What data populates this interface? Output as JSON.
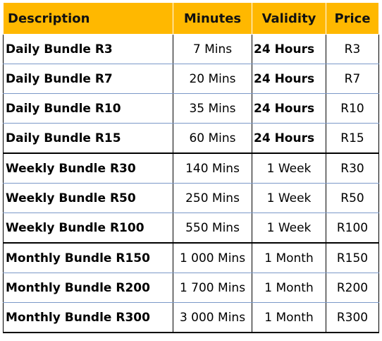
{
  "table": {
    "headers": {
      "description": "Description",
      "minutes": "Minutes",
      "validity": "Validity",
      "price": "Price"
    },
    "rows": [
      {
        "description": "Daily Bundle R3",
        "minutes": "7 Mins",
        "validity": "24 Hours",
        "price": "R3"
      },
      {
        "description": "Daily Bundle R7",
        "minutes": "20 Mins",
        "validity": "24 Hours",
        "price": "R7"
      },
      {
        "description": "Daily Bundle R10",
        "minutes": "35 Mins",
        "validity": "24 Hours",
        "price": "R10"
      },
      {
        "description": "Daily Bundle R15",
        "minutes": "60 Mins",
        "validity": "24 Hours",
        "price": "R15"
      },
      {
        "description": "Weekly Bundle R30",
        "minutes": "140 Mins",
        "validity": "1 Week",
        "price": "R30"
      },
      {
        "description": "Weekly Bundle R50",
        "minutes": "250 Mins",
        "validity": "1 Week",
        "price": "R50"
      },
      {
        "description": "Weekly Bundle R100",
        "minutes": "550 Mins",
        "validity": "1 Week",
        "price": "R100"
      },
      {
        "description": "Monthly Bundle R150",
        "minutes": "1 000 Mins",
        "validity": "1 Month",
        "price": "R150"
      },
      {
        "description": "Monthly Bundle R200",
        "minutes": "1 700 Mins",
        "validity": "1 Month",
        "price": "R200"
      },
      {
        "description": "Monthly Bundle R300",
        "minutes": "3 000 Mins",
        "validity": "1 Month",
        "price": "R300"
      }
    ]
  },
  "colors": {
    "header_background": "#ffb800",
    "row_divider": "#7b98c8",
    "group_divider": "#000000"
  }
}
